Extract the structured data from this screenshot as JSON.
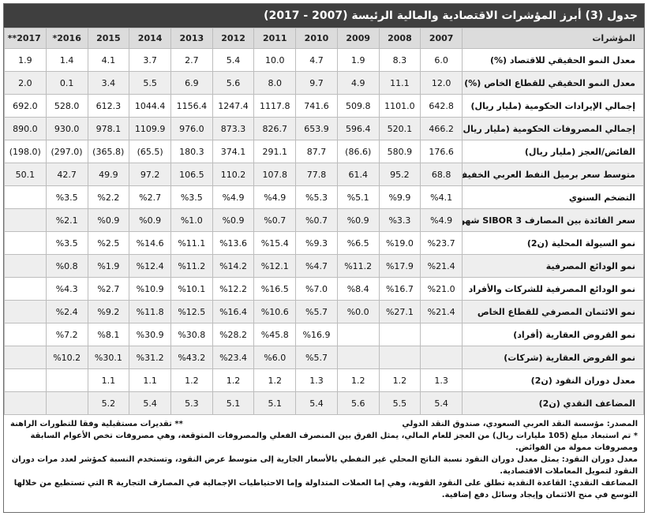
{
  "title": "جدول (3) أبرز المؤشرات الاقتصادية والمالية الرئيسة (2007 - 2017)",
  "header": {
    "indicator_label": "المؤشرات",
    "years": [
      "2007",
      "2008",
      "2009",
      "2010",
      "2011",
      "2012",
      "2013",
      "2014",
      "2015",
      "2016*",
      "2017**"
    ]
  },
  "rows": [
    {
      "label": "معدل النمو الحقيقي للاقتصاد (%)",
      "values": [
        "6.0",
        "8.3",
        "1.9",
        "4.7",
        "10.0",
        "5.4",
        "2.7",
        "3.7",
        "4.1",
        "1.4",
        "1.9"
      ]
    },
    {
      "label": "معدل النمو الحقيقي للقطاع الخاص (%)",
      "values": [
        "12.0",
        "11.1",
        "4.9",
        "9.7",
        "8.0",
        "5.6",
        "6.9",
        "5.5",
        "3.4",
        "0.1",
        "2.0"
      ]
    },
    {
      "label": "إجمالي الإيرادات الحكومية (مليار ريال)",
      "values": [
        "642.8",
        "1101.0",
        "509.8",
        "741.6",
        "1117.8",
        "1247.4",
        "1156.4",
        "1044.4",
        "612.3",
        "528.0",
        "692.0"
      ]
    },
    {
      "label": "إجمالي المصروفات الحكومية (مليار ريال)",
      "values": [
        "466.2",
        "520.1",
        "596.4",
        "653.9",
        "826.7",
        "873.3",
        "976.0",
        "1109.9",
        "978.1",
        "930.0",
        "890.0"
      ]
    },
    {
      "label": "الفائض/العجز (مليار ريال)",
      "values": [
        "176.6",
        "580.9",
        "(86.6)",
        "87.7",
        "291.1",
        "374.1",
        "180.3",
        "(65.5)",
        "(365.8)",
        "(297.0)",
        "(198.0)"
      ]
    },
    {
      "label": "متوسط سعر برميل النفط العربي الخفيف $",
      "values": [
        "68.8",
        "95.2",
        "61.4",
        "77.8",
        "107.8",
        "110.2",
        "106.5",
        "97.2",
        "49.9",
        "42.7",
        "50.1"
      ]
    },
    {
      "label": "التضخم السنوي",
      "values": [
        "%4.1",
        "%9.9",
        "%5.1",
        "%5.3",
        "%4.9",
        "%4.9",
        "%3.5",
        "%2.7",
        "%2.2",
        "%3.5",
        ""
      ]
    },
    {
      "label": "سعر الفائدة بين المصارف 3 SIBOR شهور)",
      "values": [
        "%4.9",
        "%3.3",
        "%0.9",
        "%0.7",
        "%0.7",
        "%0.9",
        "%1.0",
        "%0.9",
        "%0.9",
        "%2.1",
        ""
      ]
    },
    {
      "label": "نمو السيولة المحلية (ن2)",
      "values": [
        "%23.7",
        "%19.0",
        "%6.5",
        "%9.3",
        "%15.4",
        "%13.6",
        "%11.1",
        "%14.6",
        "%2.5",
        "%3.5",
        ""
      ]
    },
    {
      "label": "نمو الودائع المصرفية",
      "values": [
        "%21.4",
        "%17.9",
        "%11.2",
        "%4.7",
        "%12.1",
        "%14.2",
        "%11.2",
        "%12.4",
        "%1.9",
        "%0.8",
        ""
      ]
    },
    {
      "label": "نمو الودائع المصرفية للشركات والأفراد",
      "values": [
        "%21.0",
        "%16.7",
        "%8.4",
        "%7.0",
        "%16.5",
        "%12.2",
        "%10.1",
        "%10.9",
        "%2.7",
        "%4.3",
        ""
      ]
    },
    {
      "label": "نمو الائتمان المصرفي للقطاع الخاص",
      "values": [
        "%21.4",
        "%27.1",
        "%0.0",
        "%5.7",
        "%10.6",
        "%16.4",
        "%12.5",
        "%11.8",
        "%9.2",
        "%2.4",
        ""
      ]
    },
    {
      "label": "نمو القروض العقارية (أفراد)",
      "values": [
        "",
        "",
        "",
        "%16.9",
        "%45.8",
        "%28.2",
        "%30.8",
        "%30.9",
        "%8.1",
        "%7.2",
        ""
      ]
    },
    {
      "label": "نمو القروض العقارية (شركات)",
      "values": [
        "",
        "",
        "",
        "%5.7",
        "%6.0",
        "%23.4",
        "%43.2",
        "%31.2",
        "%30.1",
        "%10.2",
        ""
      ]
    },
    {
      "label": "معدل دوران النقود (ن2)",
      "values": [
        "1.3",
        "1.2",
        "1.2",
        "1.3",
        "1.2",
        "1.2",
        "1.2",
        "1.1",
        "1.1",
        "",
        ""
      ]
    },
    {
      "label": "المضاعف النقدي (ن2)",
      "values": [
        "5.4",
        "5.5",
        "5.6",
        "5.4",
        "5.1",
        "5.1",
        "5.3",
        "5.4",
        "5.2",
        "",
        ""
      ]
    }
  ],
  "notes": {
    "source": "المصدر: مؤسسة النقد العربي السعودي، صندوق النقد الدولي",
    "estimates": "** تقديرات مستقبلية وفقا للتطورات الراهنة",
    "note1": "* تم استبعاد مبلغ (105 مليارات ريال) من العجز للعام المالي، يمثل الفرق بين المنصرف الفعلي والمصروفات المتوقعة، وهي مصروفات تخص الأعوام السابقة ومصروفات ممولة من الفوائض.",
    "note2": "معدل دوران النقود: يمثل معدل دوران النقود نسبة الناتج المحلي غير النفطي بالأسعار الجارية إلى متوسط عرض النقود، وتستخدم النسبة كمؤشر لعدد مرات دوران النقود لتمويل المعاملات الاقتصادية.",
    "note3": "المضاعف النقدي: القاعدة النقدية تطلق على النقود القوية، وهي إما العملات المتداولة وإما الاحتياطيات الإجمالية في المصارف التجارية R التي تستطيع من خلالها التوسع في منح الائتمان وإيجاد وسائل دفع إضافية."
  }
}
